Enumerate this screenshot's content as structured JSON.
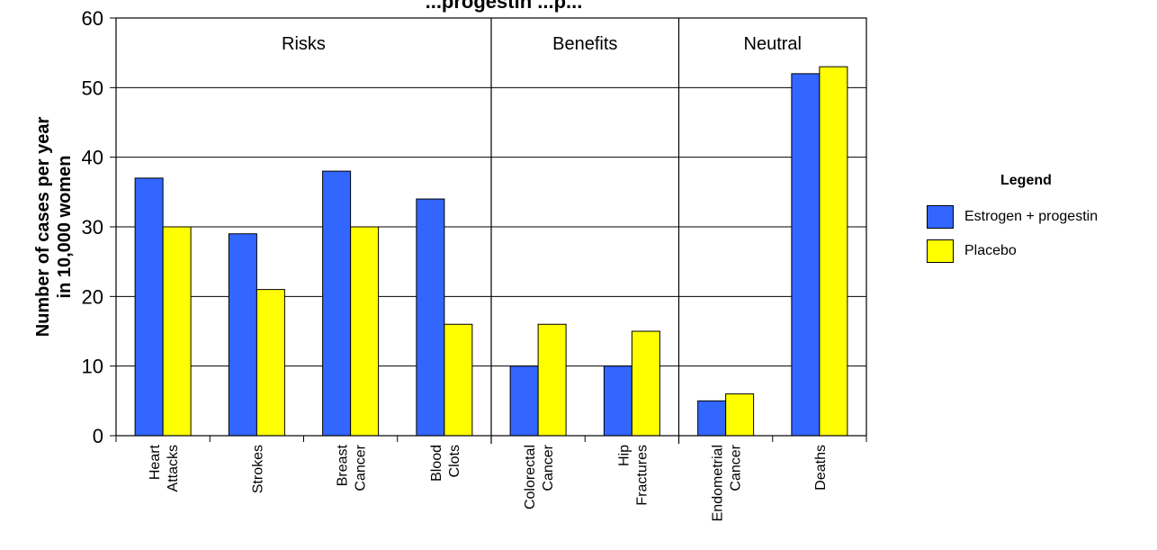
{
  "chart_data": {
    "type": "bar",
    "title": "...progestin ...p...",
    "ylabel_line1": "Number of cases per year",
    "ylabel_line2": "in 10,000 women",
    "ylim": [
      0,
      60
    ],
    "yticks": [
      0,
      10,
      20,
      30,
      40,
      50,
      60
    ],
    "grid": true,
    "categories": [
      [
        "Heart",
        "Attacks"
      ],
      [
        "Strokes"
      ],
      [
        "Breast",
        "Cancer"
      ],
      [
        "Blood",
        "Clots"
      ],
      [
        "Colorectal",
        "Cancer"
      ],
      [
        "Hip",
        "Fractures"
      ],
      [
        "Endometrial",
        "Cancer"
      ],
      [
        "Deaths"
      ]
    ],
    "groups": [
      {
        "label": "Risks",
        "start": 0,
        "end": 4
      },
      {
        "label": "Benefits",
        "start": 4,
        "end": 6
      },
      {
        "label": "Neutral",
        "start": 6,
        "end": 8
      }
    ],
    "series": [
      {
        "name": "Estrogen + progestin",
        "color": "#3366FF",
        "values": [
          37,
          29,
          38,
          34,
          10,
          10,
          5,
          52
        ]
      },
      {
        "name": "Placebo",
        "color": "#FFFF00",
        "values": [
          30,
          21,
          30,
          16,
          16,
          15,
          6,
          53
        ]
      }
    ],
    "legend": {
      "title": "Legend",
      "position": "right"
    }
  }
}
